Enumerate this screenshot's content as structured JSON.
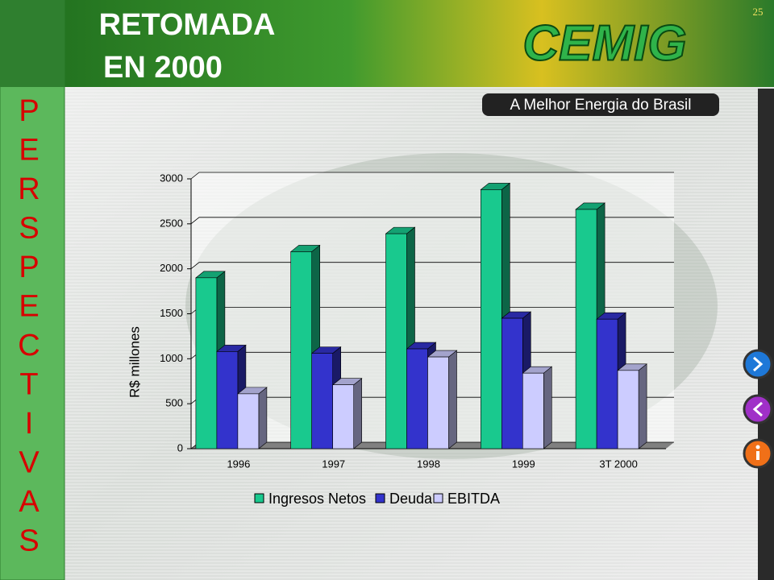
{
  "slide": {
    "title_lines": [
      "RETOMADA",
      "EN 2000"
    ],
    "page_number": "25",
    "side_letters": [
      "P",
      "E",
      "R",
      "S",
      "P",
      "E",
      "C",
      "T",
      "I",
      "V",
      "A",
      "S"
    ],
    "logo": "CEMIG",
    "tagline": "A Melhor Energia do Brasil"
  },
  "chart_data": {
    "type": "bar3d",
    "y_label": "R$ millones",
    "categories": [
      "1996",
      "1997",
      "1998",
      "1999",
      "3T 2000"
    ],
    "series": [
      {
        "name": "Ingresos Netos",
        "color": "#19c98e",
        "values": [
          1900,
          2190,
          2390,
          2880,
          2660
        ]
      },
      {
        "name": "Deuda",
        "color": "#3333cc",
        "values": [
          1080,
          1060,
          1110,
          1450,
          1440
        ]
      },
      {
        "name": "EBITDA",
        "color": "#ccccff",
        "values": [
          610,
          710,
          1020,
          840,
          870
        ]
      }
    ],
    "ylim": [
      0,
      3000
    ],
    "yticks": [
      0,
      500,
      1000,
      1500,
      2000,
      2500,
      3000
    ],
    "grid": true
  }
}
